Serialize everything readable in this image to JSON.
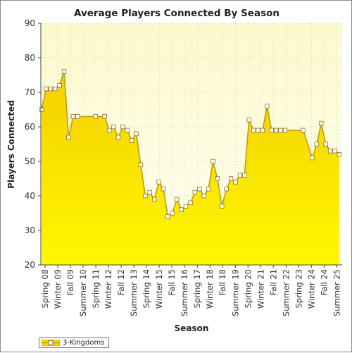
{
  "chart_data": {
    "type": "area",
    "title": "Average Players Connected By Season",
    "xlabel": "Season",
    "ylabel": "Players Connected",
    "ylim": [
      20,
      90
    ],
    "yticks": [
      20,
      30,
      40,
      50,
      60,
      70,
      80,
      90
    ],
    "grid": true,
    "legend_position": "bottom-left",
    "colors": {
      "area_top": "#f5d400",
      "area_bottom": "#fff700",
      "line": "#c29a12",
      "plot_bg_top": "#fdfbd0",
      "plot_bg_bottom": "#fffff0",
      "marker_fill": "#ffffff",
      "marker_stroke": "#8c7020"
    },
    "x_tick_labels": [
      "Spring 08",
      "Winter 09",
      "Fall 09",
      "Summer 10",
      "Spring 11",
      "Winter 12",
      "Fall 12",
      "Summer 13",
      "Spring 14",
      "Winter 15",
      "Fall 15",
      "Summer 16",
      "Spring 17",
      "Winter 18",
      "Fall 18",
      "Summer 19",
      "Spring 20",
      "Winter 21",
      "Fall 21",
      "Summer 22",
      "Spring 23",
      "Winter 24",
      "Fall 24",
      "Summer 25"
    ],
    "series": [
      {
        "name": "3-Kingdoms",
        "x": [
          0,
          0.5,
          1,
          1.5,
          2,
          2.5,
          3,
          3.5,
          4,
          6,
          7,
          7.5,
          8,
          8.5,
          9,
          9.5,
          10,
          10.5,
          11,
          11.5,
          12,
          12.5,
          13,
          13.5,
          14,
          14.5,
          15,
          15.5,
          16,
          16.5,
          17,
          17.5,
          18,
          18.5,
          19,
          19.5,
          20,
          20.5,
          21,
          21.5,
          22,
          22.5,
          23,
          23.5,
          24,
          24.5,
          25,
          25.5,
          26,
          26.5,
          27,
          29,
          30,
          30.5,
          31,
          31.5,
          32,
          32.5,
          33
        ],
        "y": [
          65,
          71,
          71,
          71,
          72,
          76,
          57,
          63,
          63,
          63,
          63,
          59,
          60,
          57,
          60,
          59,
          56,
          58,
          49,
          40,
          41,
          39,
          44,
          42,
          34,
          35,
          39,
          36,
          37,
          38,
          41,
          42,
          40,
          42,
          50,
          45,
          37,
          42,
          45,
          44,
          46,
          46,
          62,
          59,
          59,
          59,
          66,
          59,
          59,
          59,
          59,
          59,
          51,
          55,
          61,
          55,
          53,
          53,
          52
        ]
      }
    ]
  },
  "legend": {
    "label": "3-Kingdoms"
  }
}
